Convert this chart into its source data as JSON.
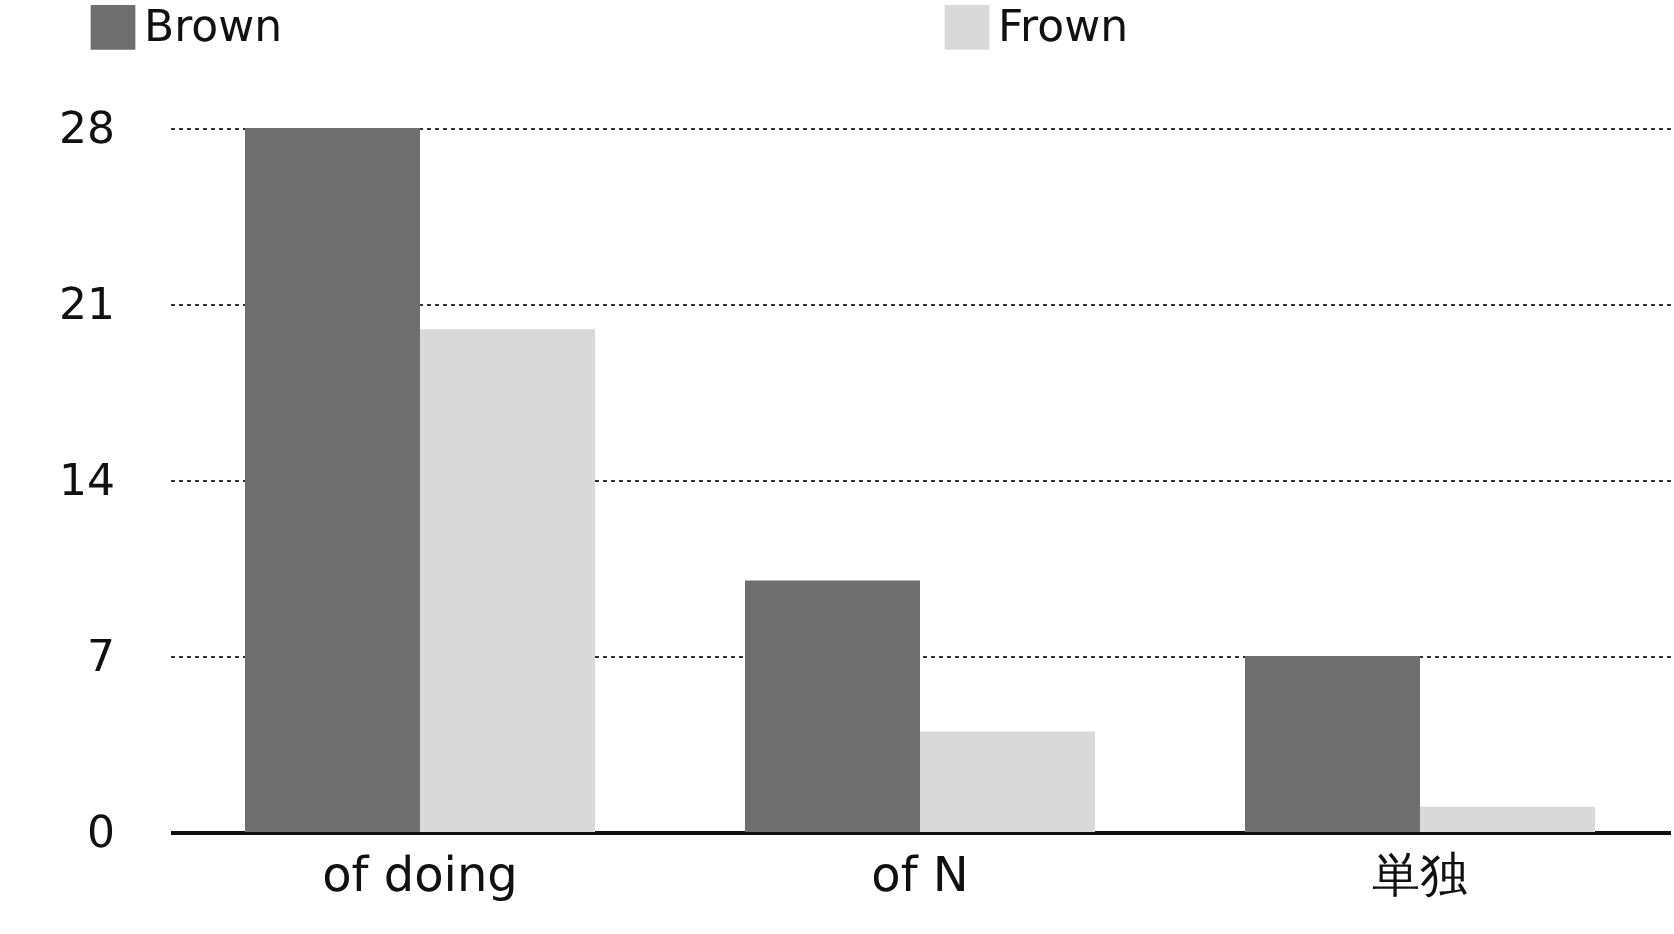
{
  "chart_data": {
    "type": "bar",
    "categories": [
      "of doing",
      "of N",
      "単独"
    ],
    "series": [
      {
        "name": "Brown",
        "color": "#6e6e6e",
        "values": [
          28,
          10,
          7
        ]
      },
      {
        "name": "Frown",
        "color": "#d9d9d9",
        "values": [
          20,
          4,
          1
        ]
      }
    ],
    "ylim": [
      0,
      28
    ],
    "yticks": [
      0,
      7,
      14,
      21,
      28
    ],
    "grid": "y",
    "legend": "top"
  }
}
